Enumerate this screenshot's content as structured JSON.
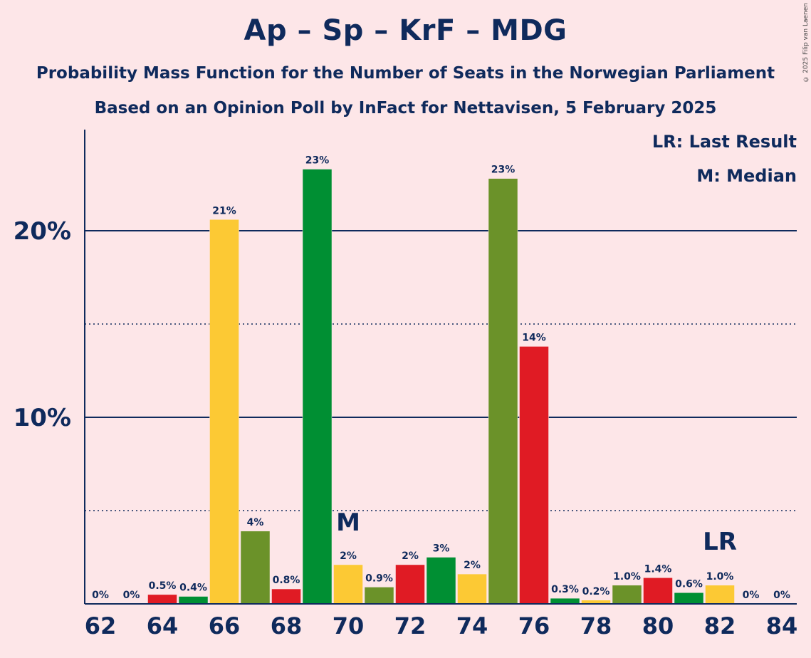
{
  "title": "Ap – Sp – KrF – MDG",
  "subtitle1": "Probability Mass Function for the Number of Seats in the Norwegian Parliament",
  "subtitle2": "Based on an Opinion Poll by InFact for Nettavisen, 5 February 2025",
  "copyright": "© 2025 Filip van Laenen",
  "legend": {
    "lr": "LR: Last Result",
    "m": "M: Median"
  },
  "colors": {
    "red": "#e01b24",
    "yellow": "#fcc934",
    "darkgreen": "#008f33",
    "olive": "#6b9229",
    "axis": "#0f2a5c",
    "background": "#fde6e8"
  },
  "chart_data": {
    "type": "bar",
    "title": "Ap – Sp – KrF – MDG",
    "xlabel": "",
    "ylabel": "",
    "ylim": [
      0,
      25.4
    ],
    "y_ticks": [
      {
        "value": 10,
        "label": "10%"
      },
      {
        "value": 20,
        "label": "20%"
      }
    ],
    "y_minor": [
      5,
      15
    ],
    "x_tick_labels": [
      "62",
      "64",
      "66",
      "68",
      "70",
      "72",
      "74",
      "76",
      "78",
      "80",
      "82",
      "84"
    ],
    "median_seat": 70,
    "median_label": "M",
    "last_result_seat": 82,
    "last_result_label": "LR",
    "bars": [
      {
        "seat": 62,
        "value": 0,
        "label": "0%",
        "color": "red"
      },
      {
        "seat": 63,
        "value": 0,
        "label": "0%",
        "color": "yellow"
      },
      {
        "seat": 64,
        "value": 0.5,
        "label": "0.5%",
        "color": "red"
      },
      {
        "seat": 65,
        "value": 0.4,
        "label": "0.4%",
        "color": "darkgreen"
      },
      {
        "seat": 66,
        "value": 20.6,
        "label": "21%",
        "color": "yellow"
      },
      {
        "seat": 67,
        "value": 3.9,
        "label": "4%",
        "color": "olive"
      },
      {
        "seat": 68,
        "value": 0.8,
        "label": "0.8%",
        "color": "red"
      },
      {
        "seat": 69,
        "value": 23.3,
        "label": "23%",
        "color": "darkgreen"
      },
      {
        "seat": 70,
        "value": 2.1,
        "label": "2%",
        "color": "yellow"
      },
      {
        "seat": 71,
        "value": 0.9,
        "label": "0.9%",
        "color": "olive"
      },
      {
        "seat": 72,
        "value": 2.1,
        "label": "2%",
        "color": "red"
      },
      {
        "seat": 73,
        "value": 2.5,
        "label": "3%",
        "color": "darkgreen"
      },
      {
        "seat": 74,
        "value": 1.6,
        "label": "2%",
        "color": "yellow"
      },
      {
        "seat": 75,
        "value": 22.8,
        "label": "23%",
        "color": "olive"
      },
      {
        "seat": 76,
        "value": 13.8,
        "label": "14%",
        "color": "red"
      },
      {
        "seat": 77,
        "value": 0.3,
        "label": "0.3%",
        "color": "darkgreen"
      },
      {
        "seat": 78,
        "value": 0.2,
        "label": "0.2%",
        "color": "yellow"
      },
      {
        "seat": 79,
        "value": 1.0,
        "label": "1.0%",
        "color": "olive"
      },
      {
        "seat": 80,
        "value": 1.4,
        "label": "1.4%",
        "color": "red"
      },
      {
        "seat": 81,
        "value": 0.6,
        "label": "0.6%",
        "color": "darkgreen"
      },
      {
        "seat": 82,
        "value": 1.0,
        "label": "1.0%",
        "color": "yellow"
      },
      {
        "seat": 83,
        "value": 0,
        "label": "0%",
        "color": "olive"
      },
      {
        "seat": 84,
        "value": 0,
        "label": "0%",
        "color": "red"
      }
    ]
  }
}
